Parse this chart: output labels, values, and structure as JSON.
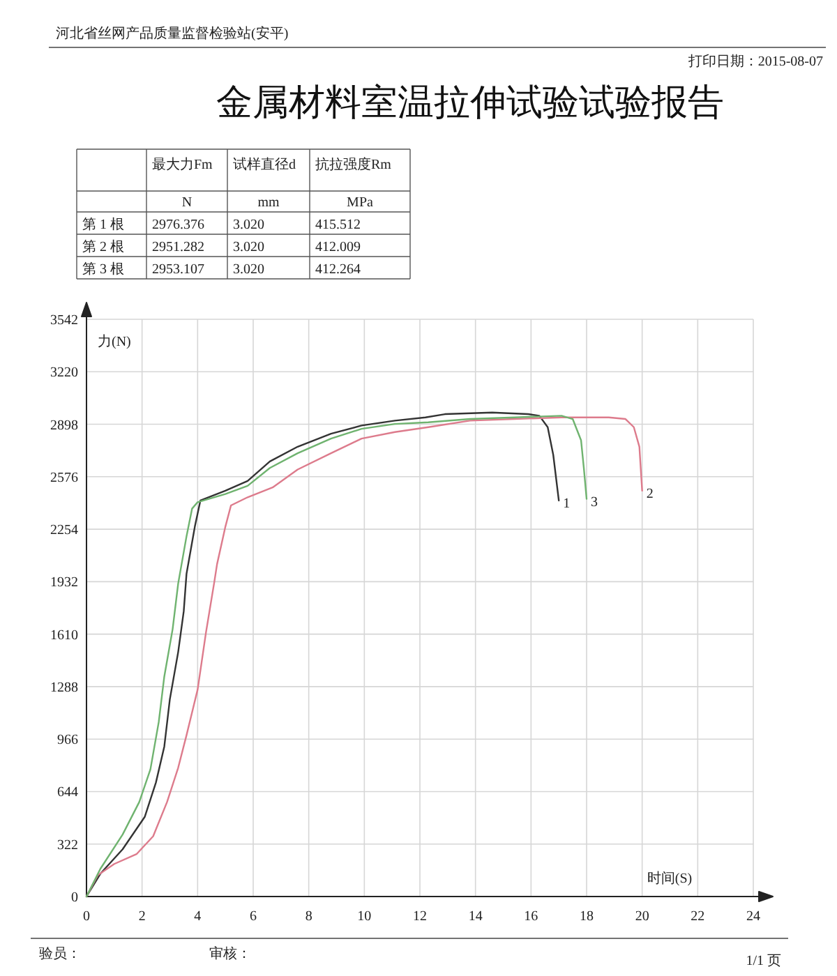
{
  "chart_data": {
    "type": "line",
    "title": "金属材料室温拉伸试验试验报告",
    "xlabel": "时间(S)",
    "ylabel": "力(N)",
    "annotations": [
      "河北省丝网产品质量监督检验站(安平)",
      "打印日期：2015-08-07",
      "最大力Fm",
      "试样直径d",
      "抗拉强度Rm",
      "N",
      "mm",
      "MPa",
      "第 1 根",
      "2976.376",
      "3.020",
      "415.512",
      "第 2 根",
      "2951.282",
      "3.020",
      "412.009",
      "第 3 根",
      "2953.107",
      "3.020",
      "412.264",
      "验员：",
      "审核：",
      "1/1 页"
    ],
    "xlim": [
      0,
      24
    ],
    "xticks": [
      0,
      2,
      4,
      6,
      8,
      10,
      12,
      14,
      16,
      18,
      20,
      22,
      24
    ],
    "ylim": [
      0,
      3542
    ],
    "yticks": [
      0,
      322,
      644,
      966,
      1288,
      1610,
      1932,
      2254,
      2576,
      2898,
      3220,
      3542
    ],
    "grid": true,
    "marker": "none",
    "line_style": "solid",
    "series": [
      {
        "name": "1",
        "color": "#333333",
        "x": [
          0,
          0.5,
          1.3,
          2.1,
          2.5,
          2.8,
          3.0,
          3.3,
          3.5,
          3.6,
          3.9,
          4.1,
          5.0,
          5.8,
          6.6,
          7.6,
          8.8,
          9.9,
          11.1,
          12.2,
          12.9,
          14.6,
          15.9,
          16.3,
          16.6,
          16.8,
          17.0
        ],
        "values": [
          0,
          140,
          290,
          490,
          700,
          920,
          1210,
          1500,
          1750,
          1980,
          2270,
          2430,
          2490,
          2550,
          2670,
          2760,
          2840,
          2890,
          2920,
          2940,
          2960,
          2970,
          2960,
          2950,
          2880,
          2710,
          2430
        ]
      },
      {
        "name": "2",
        "color": "#dd7b8c",
        "x": [
          0,
          0.4,
          1.0,
          1.8,
          2.4,
          2.9,
          3.3,
          3.6,
          4.0,
          4.3,
          4.6,
          4.7,
          5.0,
          5.2,
          5.8,
          6.7,
          7.6,
          8.8,
          9.9,
          11.1,
          12.3,
          13.8,
          15.4,
          17.1,
          18.8,
          19.4,
          19.7,
          19.9,
          20.0
        ],
        "values": [
          0,
          130,
          200,
          260,
          370,
          580,
          790,
          990,
          1270,
          1620,
          1930,
          2040,
          2270,
          2400,
          2450,
          2510,
          2620,
          2720,
          2810,
          2850,
          2880,
          2920,
          2930,
          2940,
          2940,
          2930,
          2880,
          2760,
          2490
        ]
      },
      {
        "name": "3",
        "color": "#6fb36f",
        "x": [
          0,
          0.5,
          1.3,
          1.9,
          2.3,
          2.6,
          2.8,
          3.1,
          3.3,
          3.6,
          3.8,
          4.0,
          5.0,
          5.8,
          6.6,
          7.6,
          8.8,
          9.9,
          11.1,
          12.3,
          13.8,
          15.4,
          17.1,
          17.5,
          17.8,
          17.9,
          18.0
        ],
        "values": [
          0,
          170,
          380,
          580,
          780,
          1070,
          1350,
          1640,
          1920,
          2210,
          2380,
          2420,
          2470,
          2520,
          2630,
          2720,
          2810,
          2870,
          2900,
          2910,
          2930,
          2940,
          2950,
          2930,
          2800,
          2630,
          2440
        ]
      }
    ]
  }
}
